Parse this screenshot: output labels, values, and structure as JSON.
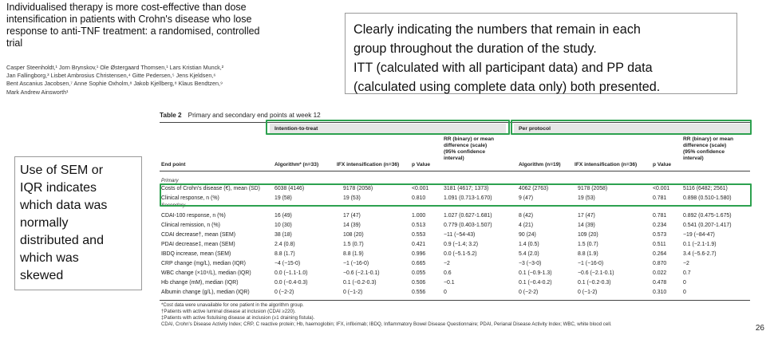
{
  "article": {
    "title": "Individualised therapy is more cost-effective than dose intensification in patients with Crohn's disease who lose response to anti-TNF treatment: a randomised, controlled trial",
    "authors": [
      "Casper Steenholdt,¹ Jorn Brynskov,¹ Ole Østergaard Thomsen,¹ Lars Kristian Munck,²",
      "Jan Fallingborg,³ Lisbet Ambrosius Christensen,⁴ Gitte Pedersen,⁵ Jens Kjeldsen,⁶",
      "Bent Ascanius Jacobsen,⁷ Anne Sophie Oxholm,⁸ Jakob Kjellberg,⁸ Klaus Bendtzen,⁹",
      "Mark Andrew Ainsworth¹"
    ]
  },
  "callout_top": {
    "lines": [
      "Clearly indicating the numbers that remain in each",
      "group throughout the duration of the study.",
      "ITT (calculated with all participant data) and PP data",
      "(calculated using complete data only) both presented."
    ]
  },
  "callout_left": {
    "lines": [
      "Use of SEM or",
      "IQR indicates",
      "which data was",
      "normally",
      "distributed and",
      "which was",
      "skewed"
    ]
  },
  "page_number": "26",
  "table": {
    "label": "Table 2",
    "caption": "Primary and secondary end points at week 12",
    "group_itt": "Intention-to-treat",
    "group_pp": "Per protocol",
    "headers": {
      "end_point": "End point",
      "algorithm_itt": "Algorithm* (n=33)",
      "ifx_itt": "IFX intensification (n=36)",
      "p_itt": "p Value",
      "rr_itt": [
        "RR (binary) or mean",
        "difference (scale)",
        "(95% confidence",
        "interval)"
      ],
      "algorithm_pp": "Algorithm (n=19)",
      "ifx_pp": "IFX intensification (n=36)",
      "p_pp": "p Value",
      "rr_pp": [
        "RR (binary) or mean",
        "difference (scale)",
        "(95% confidence",
        "interval)"
      ]
    },
    "primary_label": "Primary",
    "secondary_label": "Secondary",
    "primary_rows": [
      {
        "end_point": "Costs of Crohn's disease (€), mean (SD)",
        "alg_itt": "6038 (4146)",
        "ifx_itt": "9178 (2058)",
        "p_itt": "<0.001",
        "rr_itt": "3181 (4617; 1373)",
        "alg_pp": "4062 (2763)",
        "ifx_pp": "9178 (2058)",
        "p_pp": "<0.001",
        "rr_pp": "5116 (6482; 2561)"
      },
      {
        "end_point": "Clinical response, n (%)",
        "alg_itt": "19 (58)",
        "ifx_itt": "19 (53)",
        "p_itt": "0.810",
        "rr_itt": "1.091 (0.713-1.670)",
        "alg_pp": "9 (47)",
        "ifx_pp": "19 (53)",
        "p_pp": "0.781",
        "rr_pp": "0.898 (0.510-1.580)"
      }
    ],
    "secondary_rows": [
      {
        "end_point": "CDAI-100 response, n (%)",
        "alg_itt": "16 (49)",
        "ifx_itt": "17 (47)",
        "p_itt": "1.000",
        "rr_itt": "1.027 (0.627-1.681)",
        "alg_pp": "8 (42)",
        "ifx_pp": "17 (47)",
        "p_pp": "0.781",
        "rr_pp": "0.892 (0.475-1.675)"
      },
      {
        "end_point": "Clinical remission, n (%)",
        "alg_itt": "10 (30)",
        "ifx_itt": "14 (39)",
        "p_itt": "0.513",
        "rr_itt": "0.779 (0.403-1.507)",
        "alg_pp": "4 (21)",
        "ifx_pp": "14 (39)",
        "p_pp": "0.234",
        "rr_pp": "0.541 (0.207-1.417)"
      },
      {
        "end_point": "CDAI decrease†, mean (SEM)",
        "alg_itt": "38 (18)",
        "ifx_itt": "108 (20)",
        "p_itt": "0.553",
        "rr_itt": "−11 (−54-43)",
        "alg_pp": "90 (24)",
        "ifx_pp": "109 (20)",
        "p_pp": "0.573",
        "rr_pp": "−19 (−84-47)"
      },
      {
        "end_point": "PDAI decrease‡, mean (SEM)",
        "alg_itt": "2.4 (0.8)",
        "ifx_itt": "1.5 (0.7)",
        "p_itt": "0.421",
        "rr_itt": "0.9 (−1.4; 3.2)",
        "alg_pp": "1.4 (0.5)",
        "ifx_pp": "1.5 (0.7)",
        "p_pp": "0.511",
        "rr_pp": "0.1 (−2.1-1.9)"
      },
      {
        "end_point": "IBDQ increase, mean (SEM)",
        "alg_itt": "8.8 (1.7)",
        "ifx_itt": "8.8 (1.9)",
        "p_itt": "0.996",
        "rr_itt": "0.0 (−5.1-5.2)",
        "alg_pp": "5.4 (2.0)",
        "ifx_pp": "8.8 (1.9)",
        "p_pp": "0.264",
        "rr_pp": "3.4 (−5.6-2.7)"
      },
      {
        "end_point": "CRP change (mg/L), median (IQR)",
        "alg_itt": "−4 (−15-0)",
        "ifx_itt": "−1 (−16-0)",
        "p_itt": "0.665",
        "rr_itt": "−2",
        "alg_pp": "−3 (−3-0)",
        "ifx_pp": "−1 (−16-0)",
        "p_pp": "0.870",
        "rr_pp": "−2"
      },
      {
        "end_point": "WBC change (×10⁹/L), median (IQR)",
        "alg_itt": "0.0 (−1.1-1.0)",
        "ifx_itt": "−0.6 (−2.1-0.1)",
        "p_itt": "0.055",
        "rr_itt": "0.6",
        "alg_pp": "0.1 (−0.9-1.3)",
        "ifx_pp": "−0.6 (−2.1-0.1)",
        "p_pp": "0.022",
        "rr_pp": "0.7"
      },
      {
        "end_point": "Hb change (mM), median (IQR)",
        "alg_itt": "0.0 (−0.4-0.3)",
        "ifx_itt": "0.1 (−0.2-0.3)",
        "p_itt": "0.506",
        "rr_itt": "−0.1",
        "alg_pp": "0.1 (−0.4-0.2)",
        "ifx_pp": "0.1 (−0.2-0.3)",
        "p_pp": "0.478",
        "rr_pp": "0"
      },
      {
        "end_point": "Albumin change (g/L), median (IQR)",
        "alg_itt": "0 (−2-2)",
        "ifx_itt": "0 (−1-2)",
        "p_itt": "0.556",
        "rr_itt": "0",
        "alg_pp": "0 (−2-2)",
        "ifx_pp": "0 (−1-2)",
        "p_pp": "0.310",
        "rr_pp": "0"
      }
    ],
    "footnotes": [
      "*Cost data were unavailable for one patient in the algorithm group.",
      "†Patients with active luminal disease at inclusion (CDAI ≥220).",
      "‡Patients with active fistulising disease at inclusion (≥1 draining fistula).",
      "CDAI, Crohn's Disease Activity Index; CRP, C reactive protein; Hb, haemoglobin; IFX, infliximab; IBDQ, Inflammatory Bowel Disease Questionnaire; PDAI, Perianal Disease Activity Index; WBC, white blood cell."
    ]
  },
  "colors": {
    "highlight_box": "#2da14f",
    "header_shade": "#e6e6e6",
    "callout_border": "#9a9a9a"
  }
}
